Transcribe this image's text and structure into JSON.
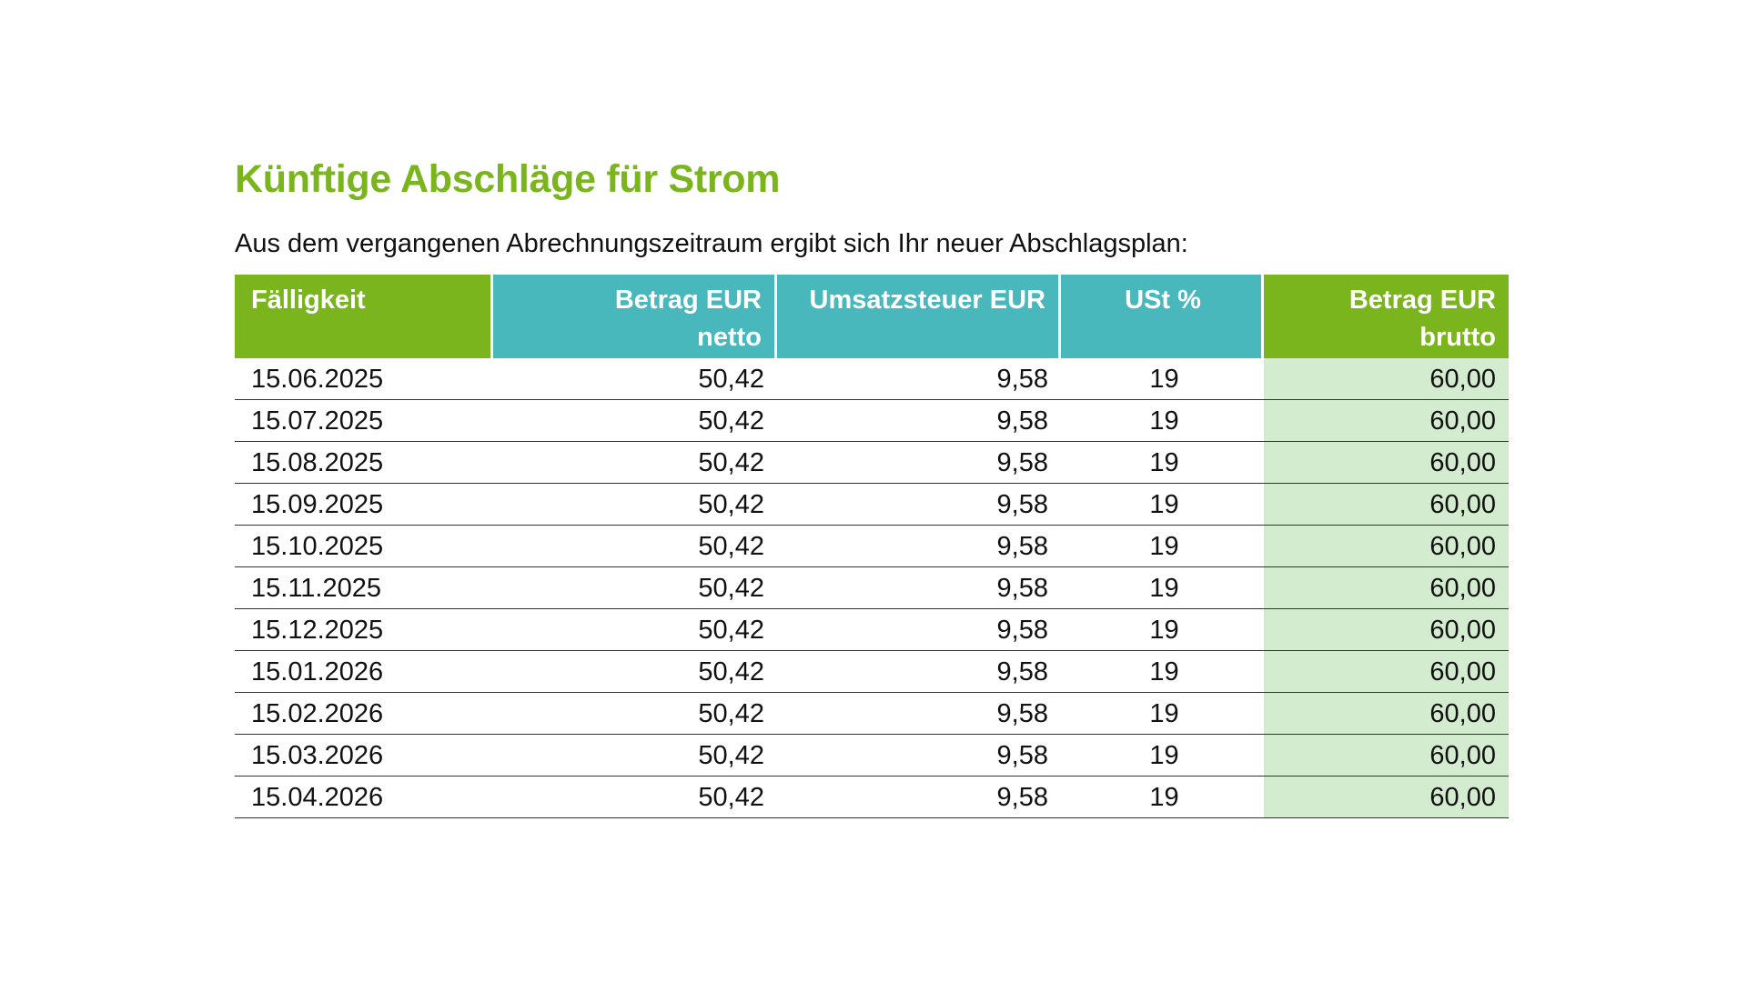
{
  "heading": "Künftige Abschläge für Strom",
  "intro": "Aus dem vergangenen Abrechnungszeitraum ergibt sich Ihr neuer Abschlagsplan:",
  "colors": {
    "title": "#7ab51d",
    "header_green": "#7ab51d",
    "header_teal": "#48b8bc",
    "brutto_highlight": "#d3ebce"
  },
  "table": {
    "headers": {
      "faelligkeit": "Fälligkeit",
      "netto_line1": "Betrag EUR",
      "netto_line2": "netto",
      "ust_eur": "Umsatzsteuer EUR",
      "ust_pct": "USt %",
      "brutto_line1": "Betrag EUR",
      "brutto_line2": "brutto"
    },
    "rows": [
      {
        "date": "15.06.2025",
        "netto": "50,42",
        "ust": "9,58",
        "pct": "19",
        "brutto": "60,00"
      },
      {
        "date": "15.07.2025",
        "netto": "50,42",
        "ust": "9,58",
        "pct": "19",
        "brutto": "60,00"
      },
      {
        "date": "15.08.2025",
        "netto": "50,42",
        "ust": "9,58",
        "pct": "19",
        "brutto": "60,00"
      },
      {
        "date": "15.09.2025",
        "netto": "50,42",
        "ust": "9,58",
        "pct": "19",
        "brutto": "60,00"
      },
      {
        "date": "15.10.2025",
        "netto": "50,42",
        "ust": "9,58",
        "pct": "19",
        "brutto": "60,00"
      },
      {
        "date": "15.11.2025",
        "netto": "50,42",
        "ust": "9,58",
        "pct": "19",
        "brutto": "60,00"
      },
      {
        "date": "15.12.2025",
        "netto": "50,42",
        "ust": "9,58",
        "pct": "19",
        "brutto": "60,00"
      },
      {
        "date": "15.01.2026",
        "netto": "50,42",
        "ust": "9,58",
        "pct": "19",
        "brutto": "60,00"
      },
      {
        "date": "15.02.2026",
        "netto": "50,42",
        "ust": "9,58",
        "pct": "19",
        "brutto": "60,00"
      },
      {
        "date": "15.03.2026",
        "netto": "50,42",
        "ust": "9,58",
        "pct": "19",
        "brutto": "60,00"
      },
      {
        "date": "15.04.2026",
        "netto": "50,42",
        "ust": "9,58",
        "pct": "19",
        "brutto": "60,00"
      }
    ]
  }
}
